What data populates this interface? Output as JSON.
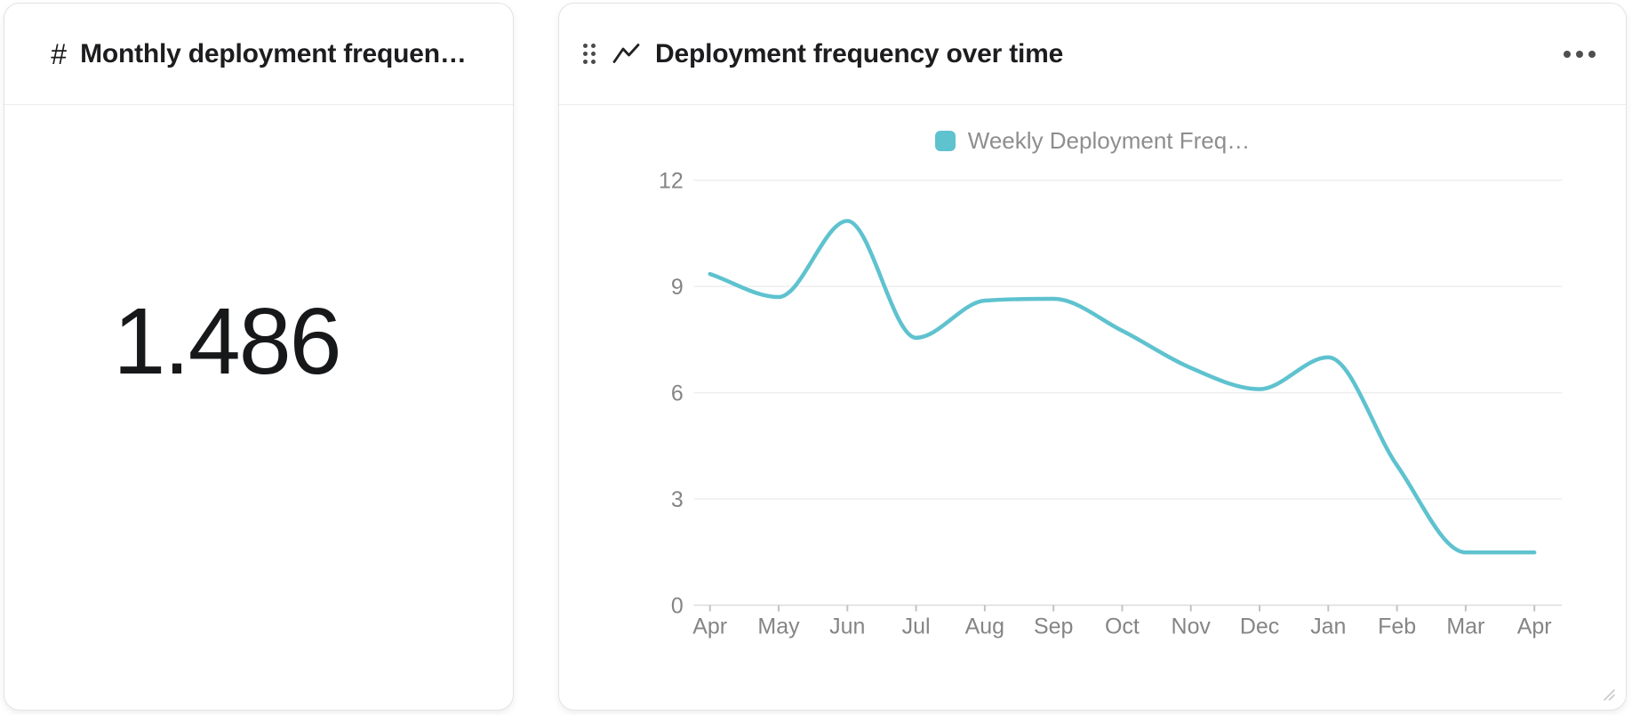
{
  "metric_card": {
    "icon_glyph": "#",
    "title": "Monthly deployment frequen…",
    "value": "1.486"
  },
  "chart_card": {
    "title": "Deployment frequency over time"
  },
  "chart_data": {
    "type": "line",
    "title": "Deployment frequency over time",
    "categories": [
      "Apr",
      "May",
      "Jun",
      "Jul",
      "Aug",
      "Sep",
      "Oct",
      "Nov",
      "Dec",
      "Jan",
      "Feb",
      "Mar",
      "Apr"
    ],
    "series": [
      {
        "name": "Weekly Deployment Freq…",
        "color": "#5ec2cf",
        "values": [
          9.35,
          8.7,
          10.85,
          7.55,
          8.6,
          8.65,
          7.75,
          6.7,
          6.1,
          7.0,
          3.95,
          1.49,
          1.49
        ]
      }
    ],
    "xlabel": "",
    "ylabel": "",
    "ylim": [
      0,
      12
    ],
    "yticks": [
      0,
      3,
      6,
      9,
      12
    ],
    "grid": true,
    "legend_position": "top",
    "smooth": true
  },
  "colors": {
    "accent": "#5ec2cf",
    "grid_line": "#eeeeee",
    "axis_line": "#dddddd",
    "tick": "#c2c2c2",
    "axis_label": "#858585",
    "legend_label": "#8e8e8e",
    "title_text": "#1d1d1f",
    "card_border": "#e3e3e3"
  }
}
